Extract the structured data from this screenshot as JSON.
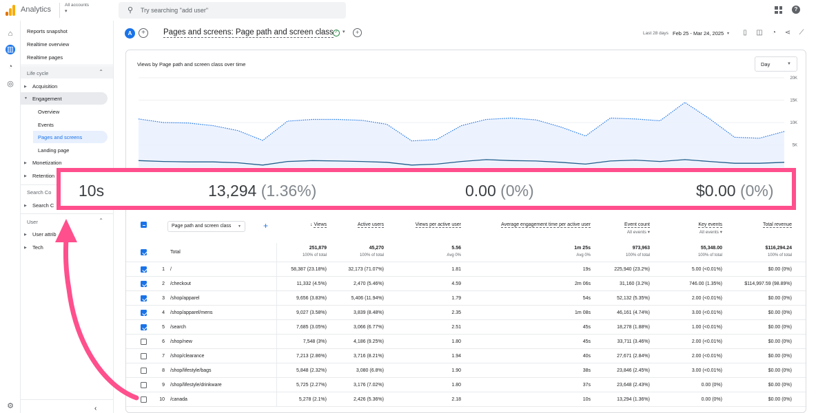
{
  "app": {
    "name": "Analytics",
    "account_label": "All accounts"
  },
  "search": {
    "placeholder": "Try searching \"add user\""
  },
  "sidebar": {
    "items": [
      {
        "label": "Reports snapshot"
      },
      {
        "label": "Realtime overview"
      },
      {
        "label": "Realtime pages"
      }
    ],
    "lifecycle_label": "Life cycle",
    "acquisition": "Acquisition",
    "engagement": "Engagement",
    "engagement_items": [
      "Overview",
      "Events",
      "Pages and screens",
      "Landing page"
    ],
    "monetization": "Monetization",
    "retention": "Retention",
    "search_console_label": "Search Co",
    "search_console_item": "Search C",
    "user_label": "User",
    "user_attrib": "User attrib",
    "tech": "Tech"
  },
  "header": {
    "segment": "A",
    "title": "Pages and screens: Page path and screen class",
    "date_label": "Last 28 days",
    "date_range": "Feb 25 - Mar 24, 2025"
  },
  "chart": {
    "title": "Views by Page path and screen class over time",
    "granularity": "Day",
    "yticks": [
      "20K",
      "15K",
      "10K",
      "5K"
    ]
  },
  "chart_data": {
    "type": "line",
    "title": "Views by Page path and screen class over time",
    "ylim": [
      0,
      20000
    ],
    "series": [
      {
        "values": [
          10800,
          10000,
          9900,
          9300,
          8200,
          6000,
          10300,
          10700,
          10700,
          10500,
          9600,
          5900,
          6200,
          9300,
          10700,
          11000,
          10600,
          9000,
          7000,
          11000,
          10800,
          10400,
          14500,
          10800,
          6700,
          6500,
          8000
        ]
      },
      {
        "values": [
          1500,
          1300,
          1200,
          1200,
          1000,
          500,
          1300,
          1500,
          1400,
          1300,
          1100,
          500,
          700,
          1300,
          1700,
          1500,
          1400,
          1100,
          700,
          1400,
          1600,
          1300,
          1700,
          1300,
          900,
          900,
          1100
        ]
      }
    ]
  },
  "callout": {
    "v1": "10s",
    "v2": "13,294",
    "v2p": "(1.36%)",
    "v3": "0.00",
    "v3p": "(0%)",
    "v4": "$0.00",
    "v4p": "(0%)"
  },
  "table": {
    "dimension": "Page path and screen class",
    "headers": {
      "views": "Views",
      "active_users": "Active users",
      "views_per_user": "Views per active user",
      "avg_engagement": "Average engagement time per active user",
      "event_count": "Event count",
      "key_events": "Key events",
      "total_revenue": "Total revenue",
      "all_events": "All events"
    },
    "total": {
      "label": "Total",
      "views": "251,879",
      "views_sub": "100% of total",
      "users": "45,270",
      "users_sub": "100% of total",
      "vpu": "5.56",
      "vpu_sub": "Avg 0%",
      "aet": "1m 25s",
      "aet_sub": "Avg 0%",
      "events": "973,963",
      "events_sub": "100% of total",
      "key": "55,348.00",
      "key_sub": "100% of total",
      "rev": "$116,294.24",
      "rev_sub": "100% of total"
    },
    "rows": [
      {
        "n": "1",
        "path": "/",
        "views": "58,387 (23.18%)",
        "users": "32,173 (71.07%)",
        "vpu": "1.81",
        "aet": "19s",
        "events": "225,940 (23.2%)",
        "key": "5.00 (<0.01%)",
        "rev": "$0.00 (0%)"
      },
      {
        "n": "2",
        "path": "/checkout",
        "views": "11,332 (4.5%)",
        "users": "2,470 (5.46%)",
        "vpu": "4.59",
        "aet": "2m 06s",
        "events": "31,160 (3.2%)",
        "key": "746.00 (1.35%)",
        "rev": "$114,997.59 (98.89%)"
      },
      {
        "n": "3",
        "path": "/shop/apparel",
        "views": "9,656 (3.83%)",
        "users": "5,406 (11.94%)",
        "vpu": "1.79",
        "aet": "54s",
        "events": "52,132 (5.35%)",
        "key": "2.00 (<0.01%)",
        "rev": "$0.00 (0%)"
      },
      {
        "n": "4",
        "path": "/shop/apparel/mens",
        "views": "9,027 (3.58%)",
        "users": "3,839 (8.48%)",
        "vpu": "2.35",
        "aet": "1m 08s",
        "events": "46,161 (4.74%)",
        "key": "3.00 (<0.01%)",
        "rev": "$0.00 (0%)"
      },
      {
        "n": "5",
        "path": "/search",
        "views": "7,685 (3.05%)",
        "users": "3,066 (6.77%)",
        "vpu": "2.51",
        "aet": "45s",
        "events": "18,278 (1.88%)",
        "key": "1.00 (<0.01%)",
        "rev": "$0.00 (0%)"
      },
      {
        "n": "6",
        "path": "/shop/new",
        "views": "7,548 (3%)",
        "users": "4,186 (9.25%)",
        "vpu": "1.80",
        "aet": "45s",
        "events": "33,711 (3.46%)",
        "key": "2.00 (<0.01%)",
        "rev": "$0.00 (0%)"
      },
      {
        "n": "7",
        "path": "/shop/clearance",
        "views": "7,213 (2.86%)",
        "users": "3,716 (8.21%)",
        "vpu": "1.94",
        "aet": "40s",
        "events": "27,671 (2.84%)",
        "key": "2.00 (<0.01%)",
        "rev": "$0.00 (0%)"
      },
      {
        "n": "8",
        "path": "/shop/lifestyle/bags",
        "views": "5,848 (2.32%)",
        "users": "3,080 (6.8%)",
        "vpu": "1.90",
        "aet": "38s",
        "events": "23,846 (2.45%)",
        "key": "3.00 (<0.01%)",
        "rev": "$0.00 (0%)"
      },
      {
        "n": "9",
        "path": "/shop/lifestyle/drinkware",
        "views": "5,725 (2.27%)",
        "users": "3,176 (7.02%)",
        "vpu": "1.80",
        "aet": "37s",
        "events": "23,648 (2.43%)",
        "key": "0.00 (0%)",
        "rev": "$0.00 (0%)"
      },
      {
        "n": "10",
        "path": "/canada",
        "views": "5,278 (2.1%)",
        "users": "2,426 (5.36%)",
        "vpu": "2.18",
        "aet": "10s",
        "events": "13,294 (1.36%)",
        "key": "0.00 (0%)",
        "rev": "$0.00 (0%)"
      }
    ]
  },
  "colors": {
    "accent": "#1a73e8",
    "highlight": "#ff4f8c",
    "line_dark": "#1f5d8a"
  }
}
